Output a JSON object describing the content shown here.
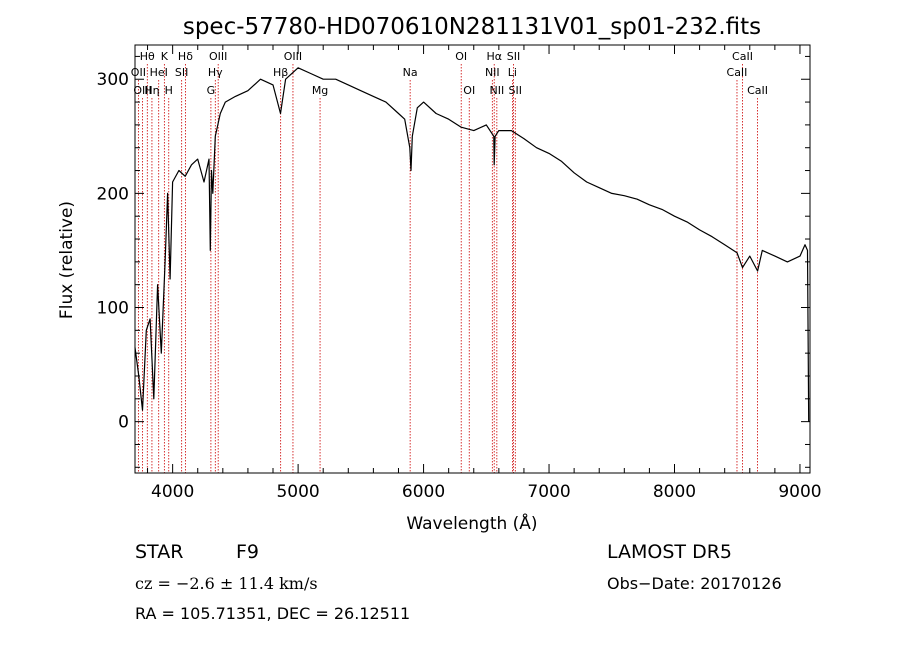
{
  "chart_data": {
    "type": "line",
    "title": "spec-57780-HD070610N281131V01_sp01-232.fits",
    "xlabel": "Wavelength (Å)",
    "ylabel": "Flux (relative)",
    "xlim": [
      3700,
      9080
    ],
    "ylim": [
      -45,
      330
    ],
    "xticks": [
      4000,
      5000,
      6000,
      7000,
      8000,
      9000
    ],
    "yticks": [
      0,
      100,
      200,
      300
    ],
    "grid": false,
    "series": [
      {
        "x": [
          3700,
          3730,
          3760,
          3790,
          3820,
          3850,
          3880,
          3910,
          3940,
          3960,
          3980,
          4000,
          4050,
          4100,
          4150,
          4200,
          4250,
          4290,
          4300,
          4310,
          4320,
          4340,
          4380,
          4420,
          4500,
          4600,
          4700,
          4800,
          4860,
          4900,
          5000,
          5100,
          5200,
          5300,
          5400,
          5500,
          5600,
          5700,
          5800,
          5850,
          5890,
          5900,
          5910,
          5950,
          6000,
          6100,
          6200,
          6300,
          6400,
          6500,
          6560,
          6563,
          6570,
          6600,
          6700,
          6800,
          6900,
          7000,
          7100,
          7200,
          7300,
          7400,
          7500,
          7600,
          7700,
          7800,
          7900,
          8000,
          8100,
          8200,
          8300,
          8400,
          8498,
          8542,
          8600,
          8662,
          8700,
          8800,
          8900,
          9000,
          9040,
          9060,
          9070
        ],
        "y": [
          65,
          40,
          10,
          80,
          90,
          20,
          120,
          60,
          140,
          200,
          125,
          210,
          220,
          215,
          225,
          230,
          210,
          230,
          150,
          220,
          200,
          250,
          270,
          280,
          285,
          290,
          300,
          295,
          270,
          300,
          310,
          305,
          300,
          300,
          295,
          290,
          285,
          280,
          270,
          265,
          240,
          220,
          250,
          275,
          280,
          270,
          265,
          258,
          255,
          260,
          250,
          225,
          250,
          255,
          255,
          248,
          240,
          235,
          228,
          218,
          210,
          205,
          200,
          198,
          195,
          190,
          186,
          180,
          175,
          168,
          162,
          155,
          148,
          135,
          145,
          132,
          150,
          145,
          140,
          145,
          155,
          150,
          0
        ]
      }
    ],
    "spectral_lines": [
      {
        "label": "Hθ",
        "x": 3798,
        "row": 0
      },
      {
        "label": "OII",
        "x": 3727,
        "row": 1
      },
      {
        "label": "OIII",
        "x": 3760,
        "row": 2
      },
      {
        "label": "K",
        "x": 3934,
        "row": 0
      },
      {
        "label": "HeI",
        "x": 3889,
        "row": 1
      },
      {
        "label": "Hη",
        "x": 3835,
        "row": 2
      },
      {
        "label": "Hδ",
        "x": 4102,
        "row": 0
      },
      {
        "label": "SII",
        "x": 4072,
        "row": 1
      },
      {
        "label": "H",
        "x": 3969,
        "row": 2
      },
      {
        "label": "OIII",
        "x": 4363,
        "row": 0
      },
      {
        "label": "Hγ",
        "x": 4340,
        "row": 1
      },
      {
        "label": "G",
        "x": 4305,
        "row": 2
      },
      {
        "label": "OIII",
        "x": 4959,
        "row": 0
      },
      {
        "label": "Hβ",
        "x": 4861,
        "row": 1
      },
      {
        "label": "Mg",
        "x": 5175,
        "row": 2
      },
      {
        "label": "Na",
        "x": 5893,
        "row": 1
      },
      {
        "label": "OI",
        "x": 6300,
        "row": 0
      },
      {
        "label": "OI",
        "x": 6364,
        "row": 2
      },
      {
        "label": "Hα",
        "x": 6563,
        "row": 0
      },
      {
        "label": "NII",
        "x": 6548,
        "row": 1
      },
      {
        "label": "NII",
        "x": 6584,
        "row": 2
      },
      {
        "label": "SII",
        "x": 6717,
        "row": 0
      },
      {
        "label": "Li",
        "x": 6708,
        "row": 1
      },
      {
        "label": "SII",
        "x": 6731,
        "row": 2
      },
      {
        "label": "CaII",
        "x": 8542,
        "row": 0
      },
      {
        "label": "CaII",
        "x": 8498,
        "row": 1
      },
      {
        "label": "CaII",
        "x": 8662,
        "row": 2
      }
    ]
  },
  "info": {
    "object_type": "STAR",
    "subclass": "F9",
    "survey": "LAMOST DR5",
    "cz": "cz = −2.6 ± 11.4 km/s",
    "obs_date": "Obs−Date: 20170126",
    "coords": "RA = 105.71351, DEC =  26.12511"
  },
  "colors": {
    "spectrum": "#000000",
    "line_markers": "#cc0000",
    "axes": "#000000",
    "background": "#ffffff"
  }
}
